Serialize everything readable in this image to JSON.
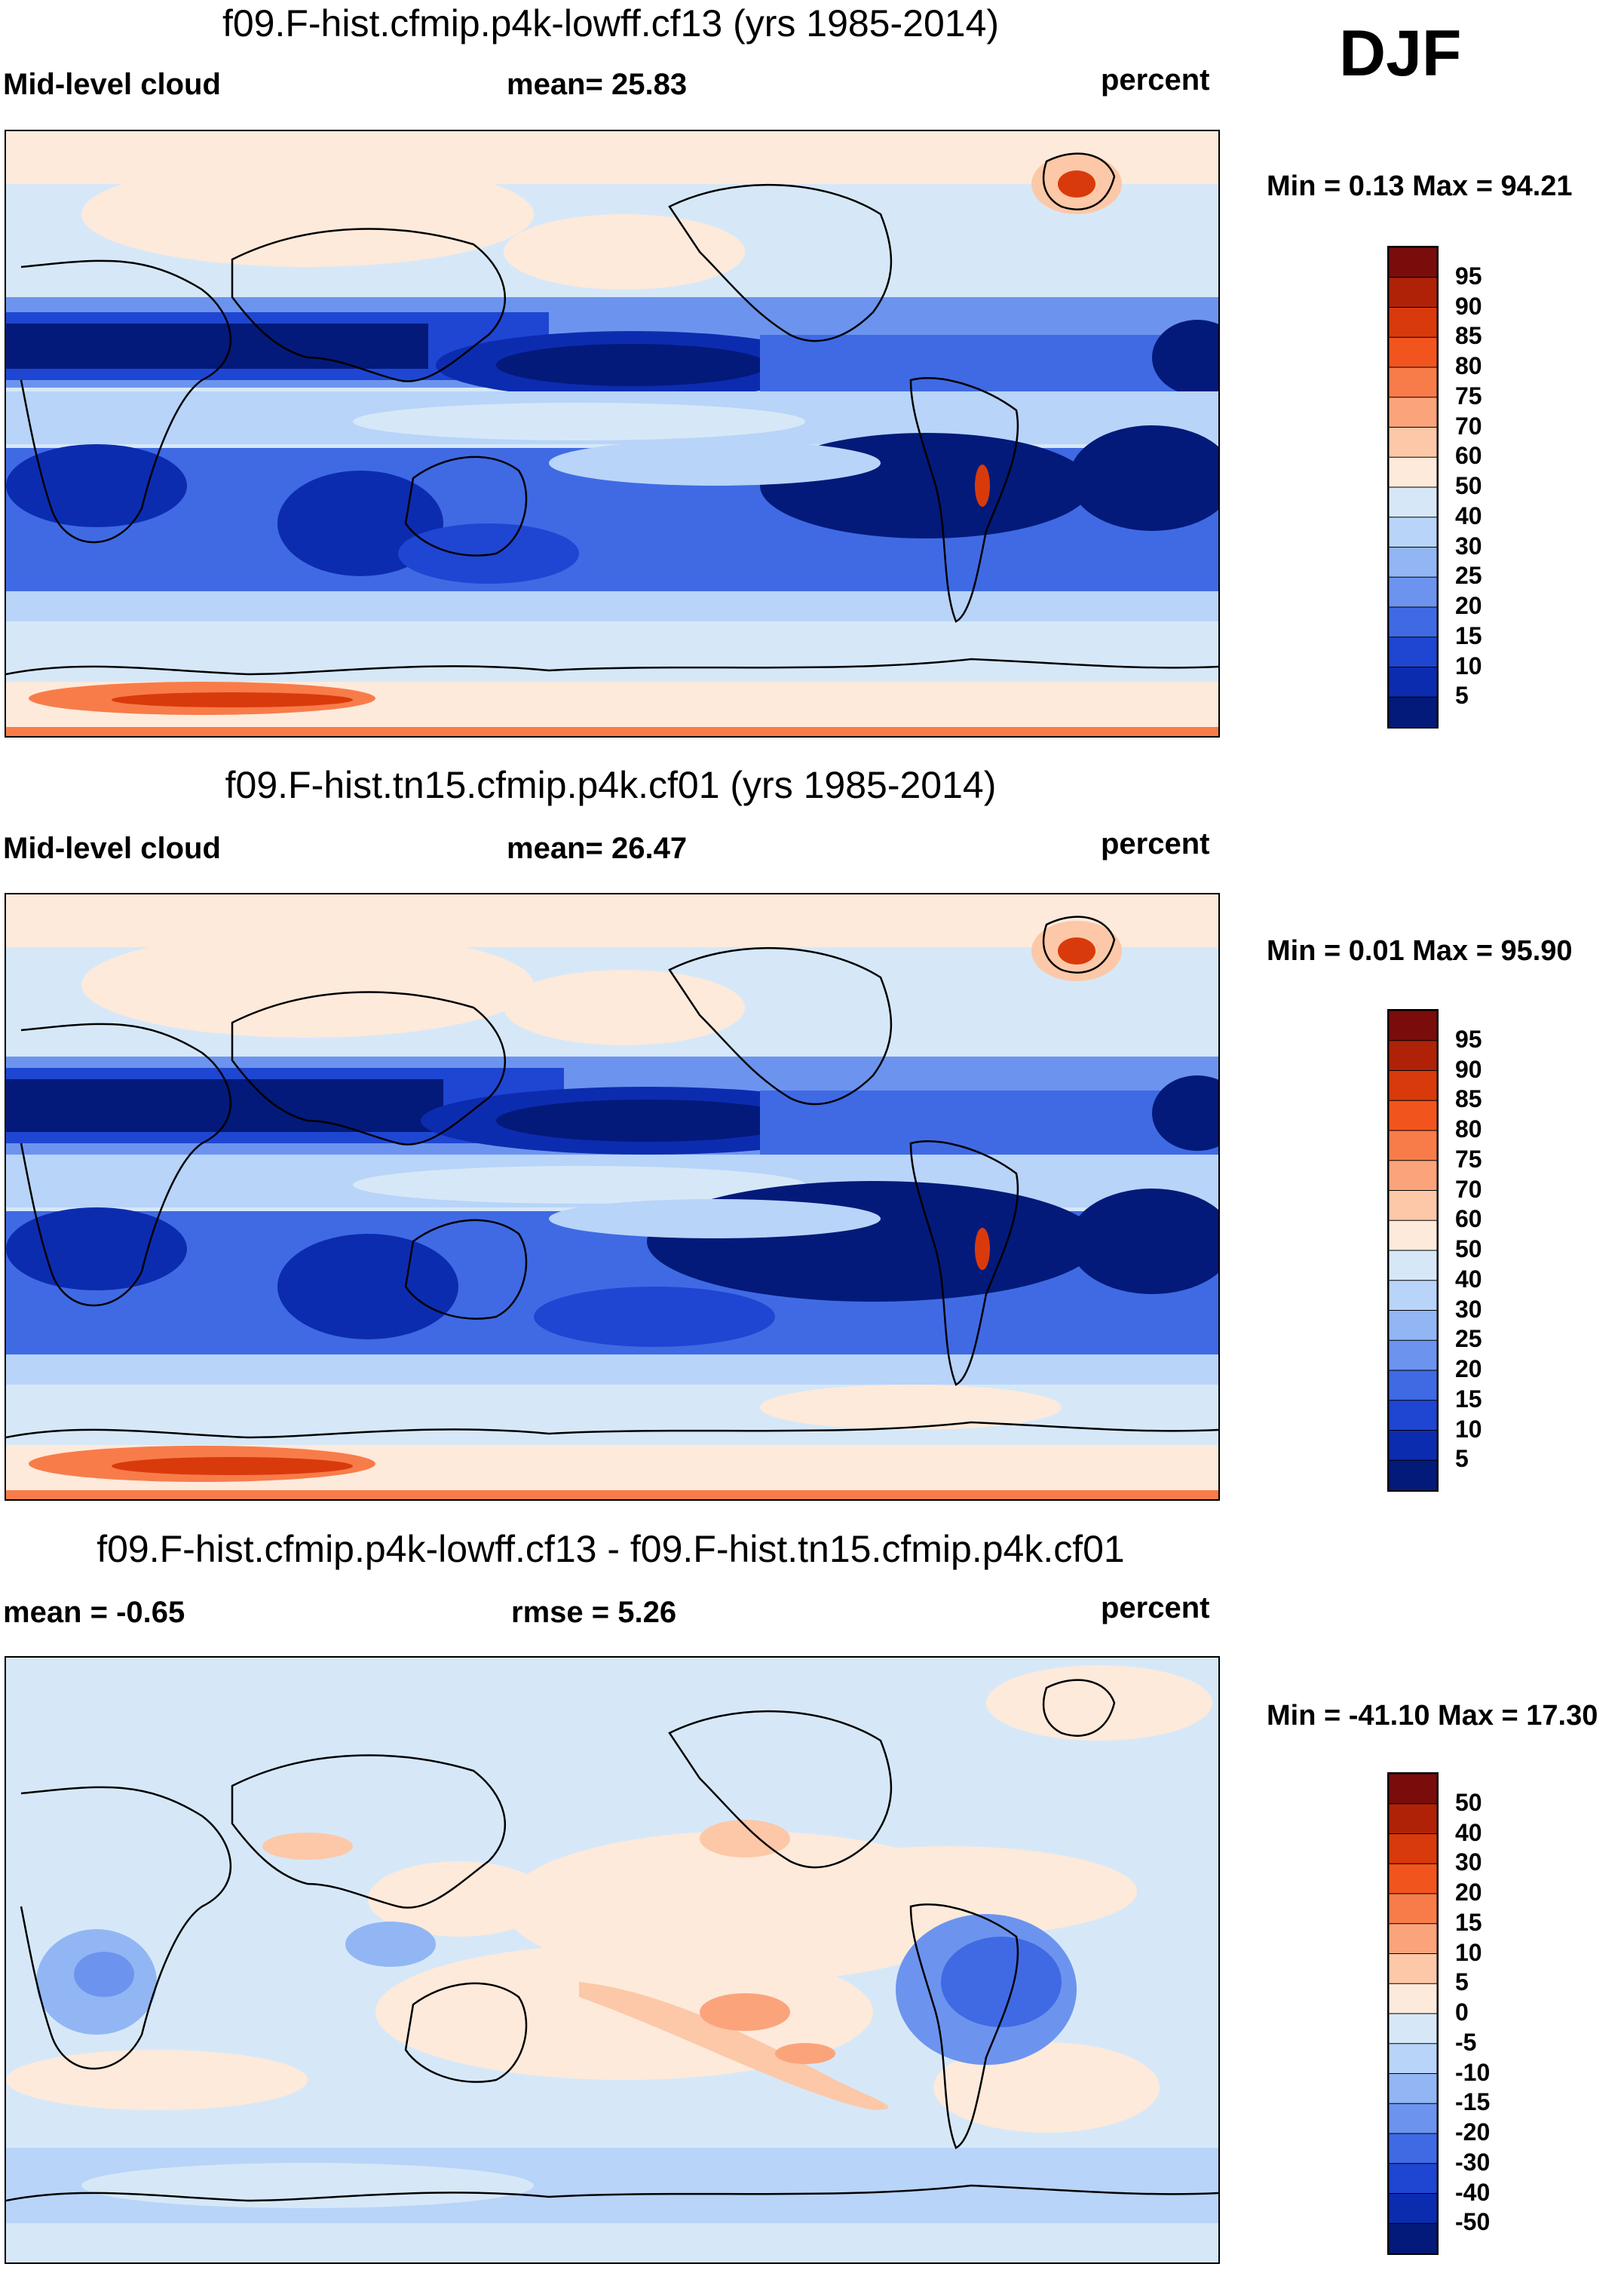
{
  "season": "DJF",
  "units": "percent",
  "panels": [
    {
      "id": "model1",
      "title": "f09.F-hist.cfmip.p4k-lowff.cf13 (yrs 1985-2014)",
      "variable": "Mid-level cloud",
      "stat_text": "mean=  25.83",
      "units": "percent",
      "minmax_text": "Min =   0.13 Max =  94.21",
      "min": 0.13,
      "max": 94.21,
      "mean": 25.83,
      "colorbar": {
        "levels": [
          "95",
          "90",
          "85",
          "80",
          "75",
          "70",
          "60",
          "50",
          "40",
          "30",
          "25",
          "20",
          "15",
          "10",
          "5"
        ],
        "colors": [
          "#7a0c0c",
          "#b02208",
          "#d93a0c",
          "#f2541e",
          "#f87c4a",
          "#fba47c",
          "#fcc8a8",
          "#fdeadb",
          "#d6e8f8",
          "#b8d4f8",
          "#92b6f4",
          "#6c94ee",
          "#3f6ae4",
          "#1f46d2",
          "#0c2cb0",
          "#031a7a"
        ]
      }
    },
    {
      "id": "model2",
      "title": "f09.F-hist.tn15.cfmip.p4k.cf01 (yrs 1985-2014)",
      "variable": "Mid-level cloud",
      "stat_text": "mean=  26.47",
      "units": "percent",
      "minmax_text": "Min =   0.01 Max =  95.90",
      "min": 0.01,
      "max": 95.9,
      "mean": 26.47,
      "colorbar": {
        "levels": [
          "95",
          "90",
          "85",
          "80",
          "75",
          "70",
          "60",
          "50",
          "40",
          "30",
          "25",
          "20",
          "15",
          "10",
          "5"
        ],
        "colors": [
          "#7a0c0c",
          "#b02208",
          "#d93a0c",
          "#f2541e",
          "#f87c4a",
          "#fba47c",
          "#fcc8a8",
          "#fdeadb",
          "#d6e8f8",
          "#b8d4f8",
          "#92b6f4",
          "#6c94ee",
          "#3f6ae4",
          "#1f46d2",
          "#0c2cb0",
          "#031a7a"
        ]
      }
    },
    {
      "id": "diff",
      "title": "f09.F-hist.cfmip.p4k-lowff.cf13 - f09.F-hist.tn15.cfmip.p4k.cf01",
      "mean_text": "mean =  -0.65",
      "rmse_text": "rmse =    5.26",
      "units": "percent",
      "minmax_text": "Min = -41.10 Max =  17.30",
      "min": -41.1,
      "max": 17.3,
      "mean": -0.65,
      "rmse": 5.26,
      "colorbar": {
        "levels": [
          "50",
          "40",
          "30",
          "20",
          "15",
          "10",
          "5",
          "0",
          "-5",
          "-10",
          "-15",
          "-20",
          "-30",
          "-40",
          "-50"
        ],
        "colors": [
          "#7a0c0c",
          "#b02208",
          "#d93a0c",
          "#f2541e",
          "#f87c4a",
          "#fba47c",
          "#fcc8a8",
          "#fdeadb",
          "#d6e8f8",
          "#b8d4f8",
          "#92b6f4",
          "#6c94ee",
          "#3f6ae4",
          "#1f46d2",
          "#0c2cb0",
          "#031a7a"
        ]
      }
    }
  ]
}
